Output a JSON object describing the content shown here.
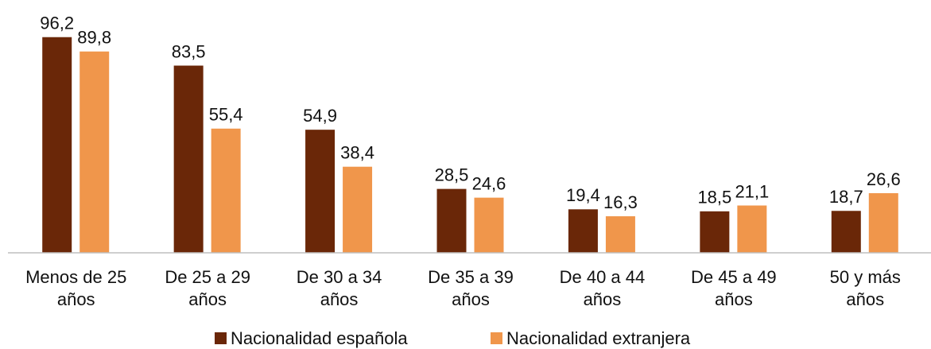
{
  "chart_data": {
    "type": "bar",
    "categories": [
      [
        "Menos de 25",
        "años"
      ],
      [
        "De 25 a 29",
        "años"
      ],
      [
        "De 30 a 34",
        "años"
      ],
      [
        "De 35 a 39",
        "años"
      ],
      [
        "De 40 a 44",
        "años"
      ],
      [
        "De 45 a 49",
        "años"
      ],
      [
        "50 y más",
        "años"
      ]
    ],
    "series": [
      {
        "name": "Nacionalidad española",
        "color": "#6a2708",
        "values": [
          96.2,
          83.5,
          54.9,
          28.5,
          19.4,
          18.5,
          18.7
        ],
        "value_labels": [
          "96,2",
          "83,5",
          "54,9",
          "28,5",
          "19,4",
          "18,5",
          "18,7"
        ]
      },
      {
        "name": "Nacionalidad extranjera",
        "color": "#f0964b",
        "values": [
          89.8,
          55.4,
          38.4,
          24.6,
          16.3,
          21.1,
          26.6
        ],
        "value_labels": [
          "89,8",
          "55,4",
          "38,4",
          "24,6",
          "16,3",
          "21,1",
          "26,6"
        ]
      }
    ],
    "ylim": [
      0,
      100
    ],
    "legend": "bottom"
  }
}
